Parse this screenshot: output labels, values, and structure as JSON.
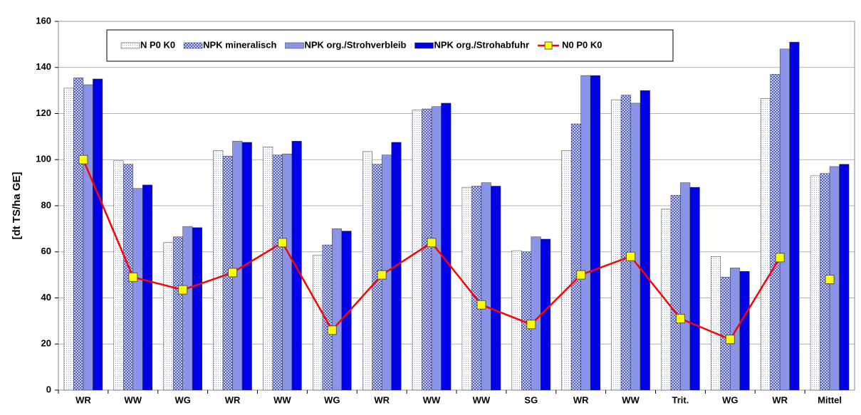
{
  "chart_data": {
    "type": "bar",
    "y_label": "[dt TS/ha GE]",
    "categories": [
      "WR",
      "WW",
      "WG",
      "WR",
      "WW",
      "WG",
      "WR",
      "WW",
      "WW",
      "SG",
      "WR",
      "WW",
      "Trit.",
      "WG",
      "WR",
      "Mittel"
    ],
    "series": [
      {
        "name": "N P0 K0",
        "color": "#e4e8f6",
        "pattern": "dots",
        "values": [
          131,
          99.5,
          64,
          104,
          105.5,
          58.5,
          103.5,
          121.5,
          88,
          60.5,
          104,
          126,
          78.5,
          58,
          126.5,
          93
        ]
      },
      {
        "name": "NPK mineralisch",
        "color": "#8f99e3",
        "pattern": "checks",
        "values": [
          135.5,
          98,
          66.5,
          101.5,
          102,
          63,
          98,
          122,
          88.5,
          60,
          115.5,
          128,
          84.5,
          49,
          137,
          94
        ]
      },
      {
        "name": "NPK org./Strohverbleib",
        "color": "#8a94e8",
        "values": [
          132.5,
          87.5,
          71,
          108,
          102.5,
          70,
          102,
          123,
          90,
          66.5,
          136.5,
          124.5,
          90,
          53,
          148,
          97
        ]
      },
      {
        "name": "NPK org./Strohabfuhr",
        "color": "#0000e6",
        "values": [
          135,
          89,
          70.5,
          107.5,
          108,
          69,
          107.5,
          124.5,
          88.5,
          65.5,
          136.5,
          130,
          88,
          51.5,
          151,
          98
        ]
      },
      {
        "name": "N0 P0 K0",
        "type": "line",
        "color": "#ff0000",
        "marker_color": "#ffff00",
        "line_breaks": [
          15
        ],
        "values": [
          100,
          49,
          43.5,
          51,
          64,
          26,
          50,
          64,
          37,
          28.5,
          50,
          58,
          31,
          22,
          57.5,
          48
        ]
      }
    ],
    "ylim": [
      0,
      160
    ],
    "yticks": [
      0,
      20,
      40,
      60,
      80,
      100,
      120,
      140,
      160
    ],
    "grid": true
  }
}
